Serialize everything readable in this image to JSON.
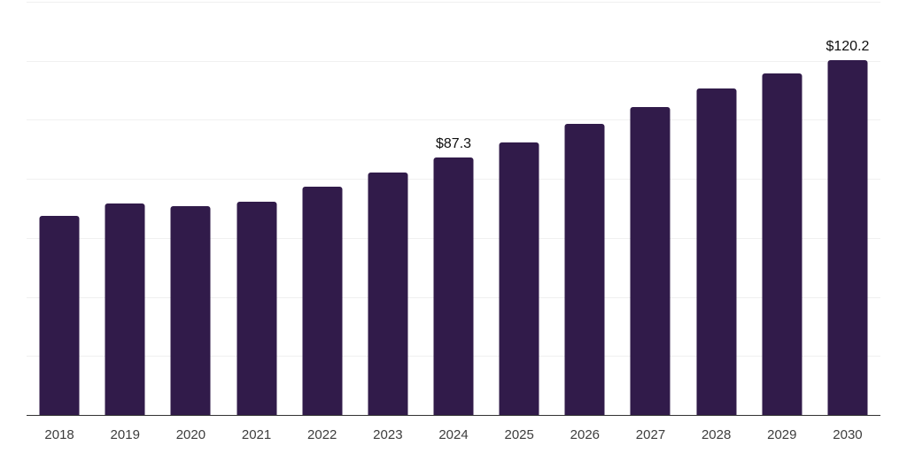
{
  "chart_data": {
    "type": "bar",
    "title": "",
    "xlabel": "",
    "ylabel": "",
    "categories": [
      "2018",
      "2019",
      "2020",
      "2021",
      "2022",
      "2023",
      "2024",
      "2025",
      "2026",
      "2027",
      "2028",
      "2029",
      "2030"
    ],
    "values": [
      67.5,
      71.7,
      70.9,
      72.3,
      77.3,
      82.0,
      87.3,
      92.3,
      98.5,
      104.3,
      110.5,
      115.8,
      120.2
    ],
    "data_labels": [
      "",
      "",
      "",
      "",
      "",
      "",
      "$87.3",
      "",
      "",
      "",
      "",
      "",
      "$120.2"
    ],
    "ylim": [
      0,
      140
    ],
    "gridline_step": 20,
    "grid": "horizontal-only",
    "legend": "none",
    "colors": {
      "bar": "#311b4a",
      "gridline": "#f0f0f0",
      "axis_line": "#333333",
      "tick_label": "#3d3d3d",
      "data_label": "#0f0f0f",
      "background": "#ffffff"
    }
  }
}
